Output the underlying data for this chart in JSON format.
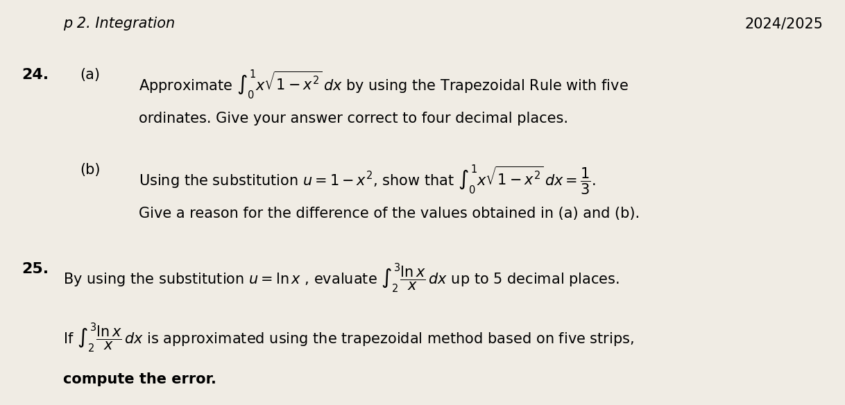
{
  "background_color": "#f0ece4",
  "header_text": "p 2. Integration",
  "year_text": "2024/2025",
  "q24_num": "24.",
  "q24a_label": "(a)",
  "q24a_line1": "Approximate $\\int_0^{1} x\\sqrt{1 - x^2}\\, dx$ by using the Trapezoidal Rule with five",
  "q24a_line2": "ordinates. Give your answer correct to four decimal places.",
  "q24b_label": "(b)",
  "q24b_line1": "Using the substitution $u = 1 - x^2$, show that $\\int_0^{1} x\\sqrt{1 - x^2}\\, dx = \\dfrac{1}{3}.$",
  "q24b_line2": "Give a reason for the difference of the values obtained in (a) and (b).",
  "q25_num": "25.",
  "q25_line1": "By using the substitution $u = \\ln x$ , evaluate $\\int_2^{3} \\dfrac{\\ln x}{x}\\, dx$ up to 5 decimal places.",
  "q25_line2": "If $\\int_2^{3} \\dfrac{\\ln x}{x}\\, dx$ is approximated using the trapezoidal method based on five strips,",
  "q25_line3": "compute the error."
}
